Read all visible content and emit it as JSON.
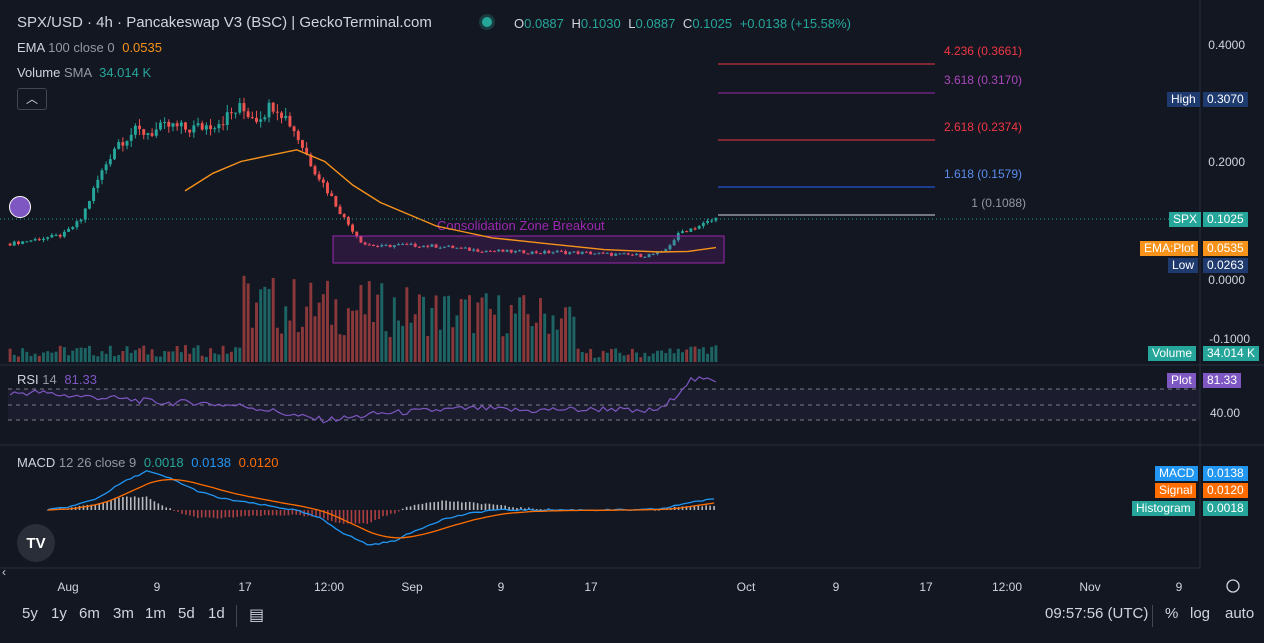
{
  "header": {
    "title": "SPX/USD · 4h · Pancakeswap V3 (BSC) | GeckoTerminal.com",
    "o_label": "O",
    "o": "0.0887",
    "h_label": "H",
    "h": "0.1030",
    "l_label": "L",
    "l": "0.0887",
    "c_label": "C",
    "c": "0.1025",
    "change": "+0.0138 (+15.58%)"
  },
  "ema": {
    "label": "EMA",
    "params": "100 close 0",
    "value": "0.0535"
  },
  "volume": {
    "label": "Volume",
    "params": "SMA",
    "value": "34.014 K"
  },
  "rsi": {
    "label": "RSI",
    "params": "14",
    "value": "81.33"
  },
  "macd": {
    "label": "MACD",
    "params": "12 26 close 9",
    "hist": "0.0018",
    "macd": "0.0138",
    "signal": "0.0120"
  },
  "fib_levels": [
    {
      "text": "4.236 (0.3661)",
      "color": "#f23645"
    },
    {
      "text": "3.618 (0.3170)",
      "color": "#9c27b0"
    },
    {
      "text": "2.618 (0.2374)",
      "color": "#f23645"
    },
    {
      "text": "1.618 (0.1579)",
      "color": "#2962ff"
    },
    {
      "text": "1 (0.1088)",
      "color": "#787b86"
    }
  ],
  "annotation": "Consolidation Zone Breakout",
  "price_axis": [
    "0.4000",
    "0.2000",
    "0.0000",
    "-0.1000"
  ],
  "rsi_axis": [
    "40.00"
  ],
  "x_axis": [
    "Aug",
    "9",
    "17",
    "12:00",
    "Sep",
    "9",
    "17",
    "Oct",
    "9",
    "17",
    "12:00",
    "Nov",
    "9"
  ],
  "tags": {
    "high_label": "High",
    "high": "0.3070",
    "spx_label": "SPX",
    "spx": "0.1025",
    "ema_label": "EMA:Plot",
    "ema": "0.0535",
    "low_label": "Low",
    "low": "0.0263",
    "vol_label": "Volume",
    "vol": "34.014 K",
    "rsi_label": "Plot",
    "rsi": "81.33",
    "macd_label": "MACD",
    "macd": "0.0138",
    "signal_label": "Signal",
    "signal": "0.0120",
    "hist_label": "Histogram",
    "hist": "0.0018"
  },
  "timeframes": [
    "5y",
    "1y",
    "6m",
    "3m",
    "1m",
    "5d",
    "1d"
  ],
  "clock": "09:57:56 (UTC)",
  "scale_options": [
    "%",
    "log",
    "auto"
  ],
  "collapse_icon": "chevron-up-icon",
  "colors": {
    "up": "#26a69a",
    "down": "#ef5350",
    "ema": "#f7931a",
    "rsi": "#7e57c2",
    "macd": "#2196f3",
    "signal": "#ff6d00",
    "bg": "#131722"
  },
  "chart_data": {
    "type": "candlestick",
    "title": "SPX/USD · 4h · Pancakeswap V3 (BSC) | GeckoTerminal.com",
    "x": [
      "Aug",
      "9",
      "17",
      "12:00",
      "Sep",
      "9",
      "17",
      "Oct"
    ],
    "price_ylim": [
      -0.1,
      0.4
    ],
    "price_path": [
      0.06,
      0.065,
      0.07,
      0.075,
      0.1,
      0.17,
      0.23,
      0.25,
      0.25,
      0.26,
      0.255,
      0.26,
      0.27,
      0.29,
      0.275,
      0.3,
      0.26,
      0.2,
      0.15,
      0.1,
      0.06,
      0.055,
      0.058,
      0.057,
      0.056,
      0.054,
      0.05,
      0.048,
      0.047,
      0.046,
      0.045,
      0.046,
      0.045,
      0.044,
      0.042,
      0.041,
      0.04,
      0.045,
      0.08,
      0.09,
      0.1025
    ],
    "ema_series": [
      0.15,
      0.18,
      0.2,
      0.21,
      0.22,
      0.2,
      0.16,
      0.13,
      0.11,
      0.09,
      0.08,
      0.07,
      0.065,
      0.06,
      0.055,
      0.05,
      0.048,
      0.046,
      0.047,
      0.0535
    ],
    "fib": [
      {
        "ratio": 4.236,
        "price": 0.3661
      },
      {
        "ratio": 3.618,
        "price": 0.317
      },
      {
        "ratio": 2.618,
        "price": 0.2374
      },
      {
        "ratio": 1.618,
        "price": 0.1579
      },
      {
        "ratio": 1,
        "price": 0.1088
      }
    ],
    "high": 0.307,
    "low": 0.0263,
    "last": 0.1025,
    "ema100": 0.0535,
    "volume_sma": "34.014 K",
    "rsi": {
      "period": 14,
      "last": 81.33,
      "series": [
        64,
        66,
        62,
        60,
        58,
        55,
        52,
        53,
        50,
        48,
        42,
        35,
        30,
        33,
        38,
        40,
        42,
        44,
        45,
        43,
        42,
        44,
        43,
        45,
        40,
        45,
        82,
        81.33
      ]
    },
    "macd": {
      "macd": 0.0138,
      "signal": 0.012,
      "hist": 0.0018
    }
  }
}
